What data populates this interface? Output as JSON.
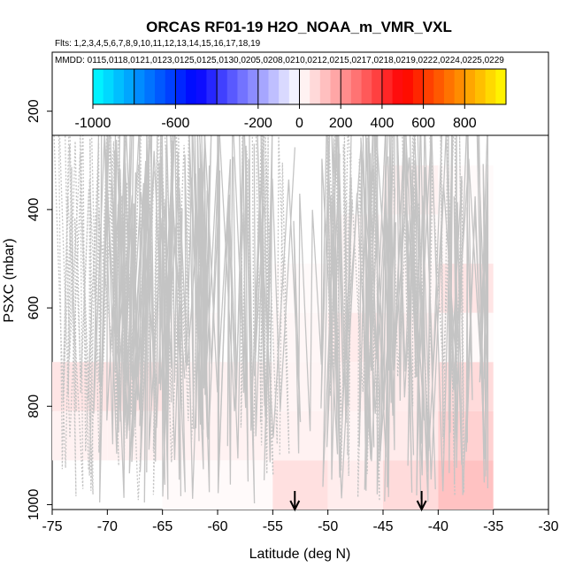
{
  "chart_data": {
    "type": "heatmap",
    "title": "ORCAS RF01-19 H2O_NOAA_m_VMR_VXL",
    "flights_label": "Flts: 1,2,3,4,5,6,7,8,9,10,11,12,13,14,15,16,17,18,19",
    "dates_label": "MMDD: 0115,0118,0121,0123,0125,0125,0130,0205,0208,0210,0212,0215,0217,0218,0219,0222,0224,0225,0229",
    "xlabel": "Latitude (deg N)",
    "ylabel": "PSXC (mbar)",
    "xlim": [
      -75,
      -30
    ],
    "ylim": [
      1010,
      80
    ],
    "xticks": [
      "-75",
      "-70",
      "-65",
      "-60",
      "-55",
      "-50",
      "-45",
      "-40",
      "-35",
      "-30"
    ],
    "yticks": [
      "200",
      "400",
      "600",
      "800",
      "1000"
    ],
    "colorbar": {
      "range": [
        -1000,
        1000
      ],
      "ticks": [
        "-1000",
        "-600",
        "-200",
        "0",
        "200",
        "400",
        "600",
        "800"
      ],
      "colors": [
        "#00ffff",
        "#0000ff",
        "#ffffff",
        "#ff0000",
        "#ffff00"
      ]
    },
    "cells": [
      {
        "lat": [
          -75,
          -70
        ],
        "p": [
          710,
          810
        ],
        "value": 50
      },
      {
        "lat": [
          -70,
          -65
        ],
        "p": [
          710,
          810
        ],
        "value": 50
      },
      {
        "lat": [
          -75,
          -70
        ],
        "p": [
          810,
          910
        ],
        "value": 25
      },
      {
        "lat": [
          -70,
          -65
        ],
        "p": [
          810,
          910
        ],
        "value": 25
      },
      {
        "lat": [
          -70,
          -65
        ],
        "p": [
          610,
          710
        ],
        "value": 10
      },
      {
        "lat": [
          -65,
          -60
        ],
        "p": [
          610,
          710
        ],
        "value": 10
      },
      {
        "lat": [
          -65,
          -60
        ],
        "p": [
          710,
          810
        ],
        "value": 25
      },
      {
        "lat": [
          -60,
          -55
        ],
        "p": [
          710,
          810
        ],
        "value": 25
      },
      {
        "lat": [
          -65,
          -60
        ],
        "p": [
          810,
          910
        ],
        "value": 25
      },
      {
        "lat": [
          -60,
          -55
        ],
        "p": [
          810,
          910
        ],
        "value": 25
      },
      {
        "lat": [
          -65,
          -60
        ],
        "p": [
          910,
          1010
        ],
        "value": 10
      },
      {
        "lat": [
          -60,
          -55
        ],
        "p": [
          910,
          1010
        ],
        "value": 10
      },
      {
        "lat": [
          -55,
          -50
        ],
        "p": [
          910,
          1010
        ],
        "value": 60
      },
      {
        "lat": [
          -50,
          -45
        ],
        "p": [
          910,
          1010
        ],
        "value": 35
      },
      {
        "lat": [
          -45,
          -40
        ],
        "p": [
          910,
          1010
        ],
        "value": 70
      },
      {
        "lat": [
          -40,
          -35
        ],
        "p": [
          910,
          1010
        ],
        "value": 120
      },
      {
        "lat": [
          -55,
          -50
        ],
        "p": [
          810,
          910
        ],
        "value": 25
      },
      {
        "lat": [
          -50,
          -45
        ],
        "p": [
          810,
          910
        ],
        "value": 20
      },
      {
        "lat": [
          -45,
          -40
        ],
        "p": [
          810,
          910
        ],
        "value": 40
      },
      {
        "lat": [
          -40,
          -35
        ],
        "p": [
          810,
          910
        ],
        "value": 90
      },
      {
        "lat": [
          -55,
          -50
        ],
        "p": [
          710,
          810
        ],
        "value": 20
      },
      {
        "lat": [
          -50,
          -45
        ],
        "p": [
          710,
          810
        ],
        "value": 30
      },
      {
        "lat": [
          -45,
          -40
        ],
        "p": [
          710,
          810
        ],
        "value": 35
      },
      {
        "lat": [
          -40,
          -35
        ],
        "p": [
          710,
          810
        ],
        "value": 70
      },
      {
        "lat": [
          -55,
          -50
        ],
        "p": [
          610,
          710
        ],
        "value": 15
      },
      {
        "lat": [
          -50,
          -45
        ],
        "p": [
          610,
          710
        ],
        "value": 40
      },
      {
        "lat": [
          -45,
          -40
        ],
        "p": [
          610,
          710
        ],
        "value": 30
      },
      {
        "lat": [
          -40,
          -35
        ],
        "p": [
          610,
          710
        ],
        "value": 10
      },
      {
        "lat": [
          -55,
          -50
        ],
        "p": [
          510,
          610
        ],
        "value": 10
      },
      {
        "lat": [
          -50,
          -45
        ],
        "p": [
          510,
          610
        ],
        "value": 15
      },
      {
        "lat": [
          -45,
          -40
        ],
        "p": [
          510,
          610
        ],
        "value": 15
      },
      {
        "lat": [
          -40,
          -35
        ],
        "p": [
          510,
          610
        ],
        "value": 50
      },
      {
        "lat": [
          -50,
          -45
        ],
        "p": [
          410,
          510
        ],
        "value": 15
      },
      {
        "lat": [
          -45,
          -40
        ],
        "p": [
          410,
          510
        ],
        "value": 10
      },
      {
        "lat": [
          -40,
          -35
        ],
        "p": [
          410,
          510
        ],
        "value": 10
      },
      {
        "lat": [
          -45,
          -40
        ],
        "p": [
          310,
          410
        ],
        "value": 25
      },
      {
        "lat": [
          -40,
          -35
        ],
        "p": [
          310,
          410
        ],
        "value": 10
      }
    ],
    "arrows": [
      -53,
      -41.5
    ],
    "grid": false
  }
}
